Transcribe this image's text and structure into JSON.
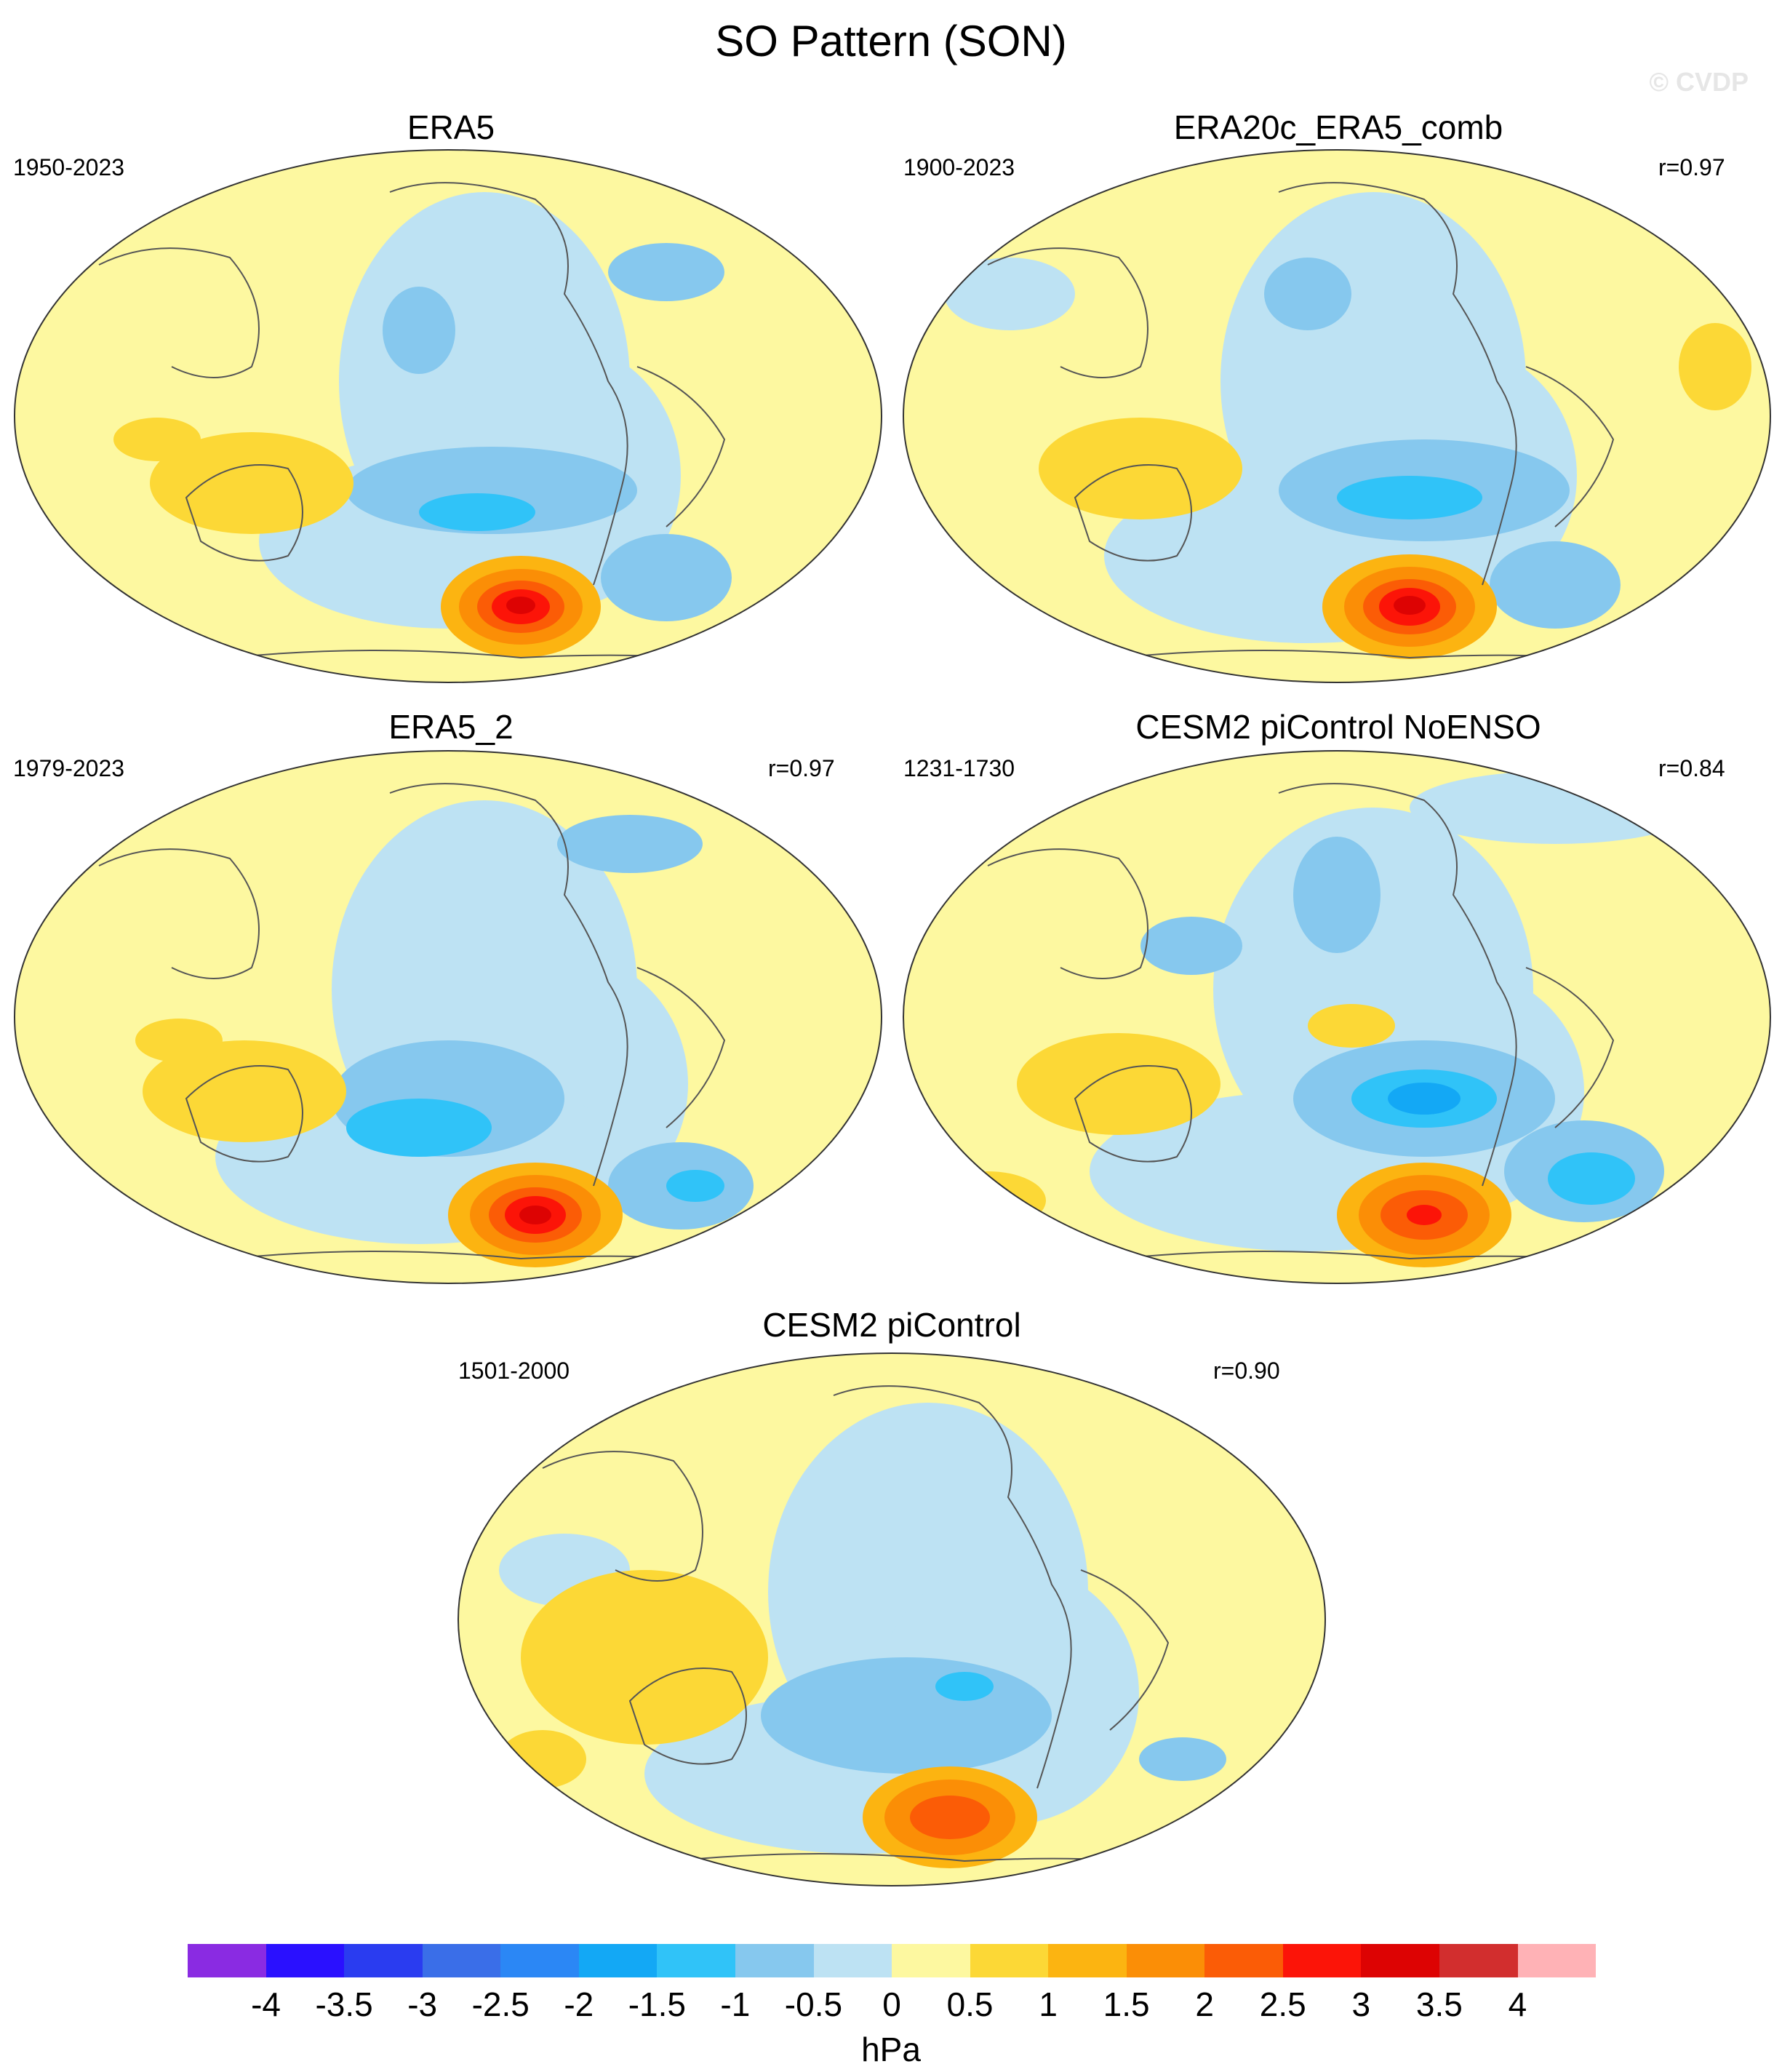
{
  "title": "SO Pattern (SON)",
  "watermark": "© CVDP",
  "colorbar": {
    "units": "hPa",
    "ticks": [
      "-4",
      "-3.5",
      "-3",
      "-2.5",
      "-2",
      "-1.5",
      "-1",
      "-0.5",
      "0",
      "0.5",
      "1",
      "1.5",
      "2",
      "2.5",
      "3",
      "3.5",
      "4"
    ],
    "colors": [
      "#8a2be2",
      "#2a10ff",
      "#2a3cf0",
      "#3a6ee8",
      "#2b87f5",
      "#13a8f5",
      "#30c3f8",
      "#86c8ee",
      "#bde2f3",
      "#fdf8a0",
      "#fcd836",
      "#fcb411",
      "#fb8e06",
      "#fb5c06",
      "#fc1408",
      "#dd0303",
      "#d22e2e",
      "#ffb2b6"
    ]
  },
  "panels": [
    {
      "title": "ERA5",
      "period": "1950-2023",
      "corr": ""
    },
    {
      "title": "ERA20c_ERA5_comb",
      "period": "1900-2023",
      "corr": "r=0.97"
    },
    {
      "title": "ERA5_2",
      "period": "1979-2023",
      "corr": "r=0.97"
    },
    {
      "title": "CESM2 piControl NoENSO",
      "period": "1231-1730",
      "corr": "r=0.84"
    },
    {
      "title": "CESM2 piControl",
      "period": "1501-2000",
      "corr": "r=0.90"
    }
  ]
}
